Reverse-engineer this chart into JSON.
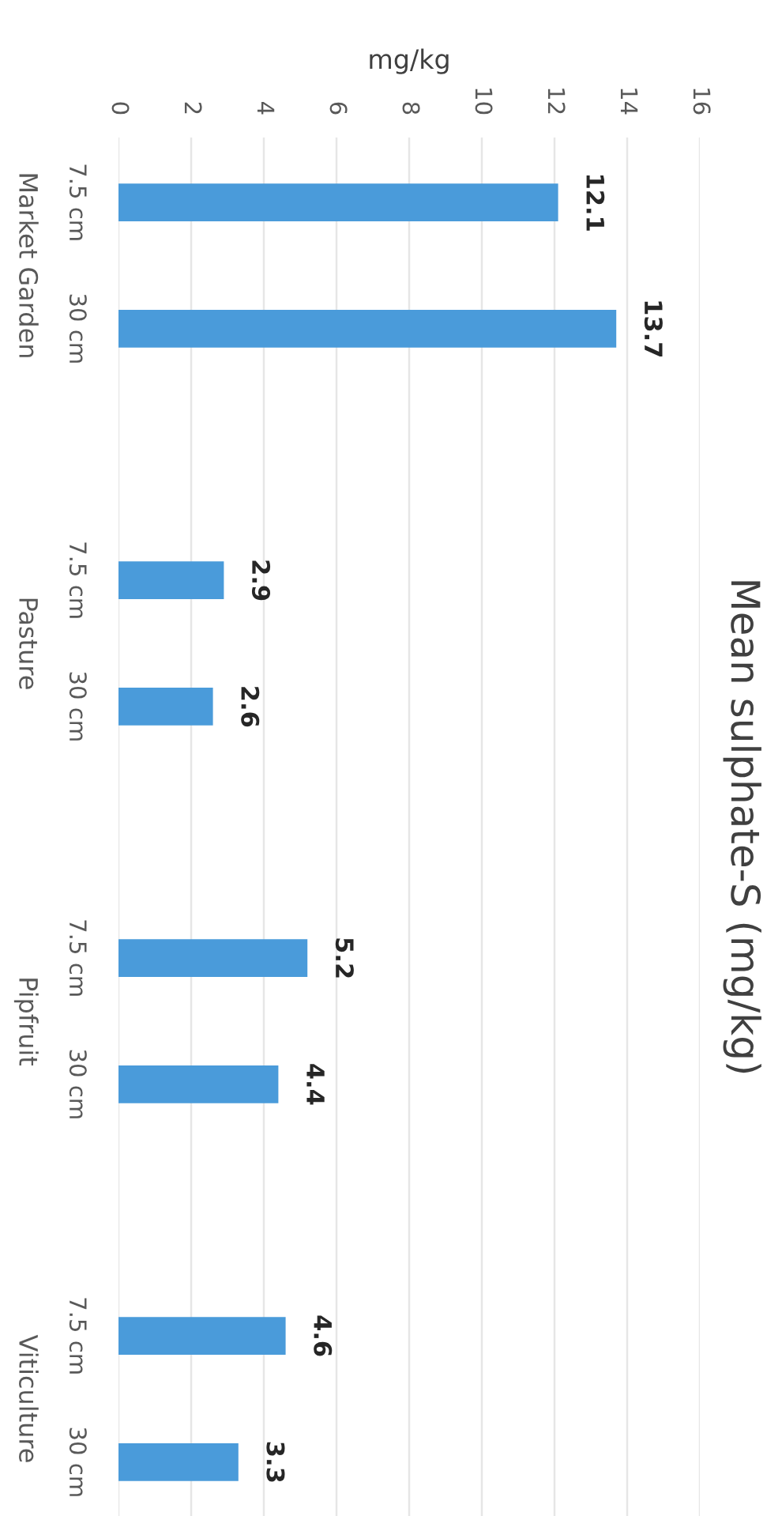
{
  "chart_data": {
    "type": "bar",
    "orientation": "horizontal",
    "title": "Mean sulphate-S (mg/kg)",
    "xlabel": "mg/kg",
    "categories": [
      "Market Garden",
      "Pasture",
      "Pipfruit",
      "Viticulture"
    ],
    "series": [
      {
        "name": "7.5 cm",
        "color": "#4a9bda",
        "values": [
          12.1,
          2.9,
          5.2,
          4.6
        ]
      },
      {
        "name": "30 cm",
        "color": "#4a9bda",
        "values": [
          13.7,
          2.6,
          4.4,
          3.3
        ]
      }
    ],
    "xlim": [
      0,
      16
    ],
    "xticks": [
      0,
      2,
      4,
      6,
      8,
      10,
      12,
      14,
      16
    ],
    "data_labels": true,
    "grid": "x"
  }
}
